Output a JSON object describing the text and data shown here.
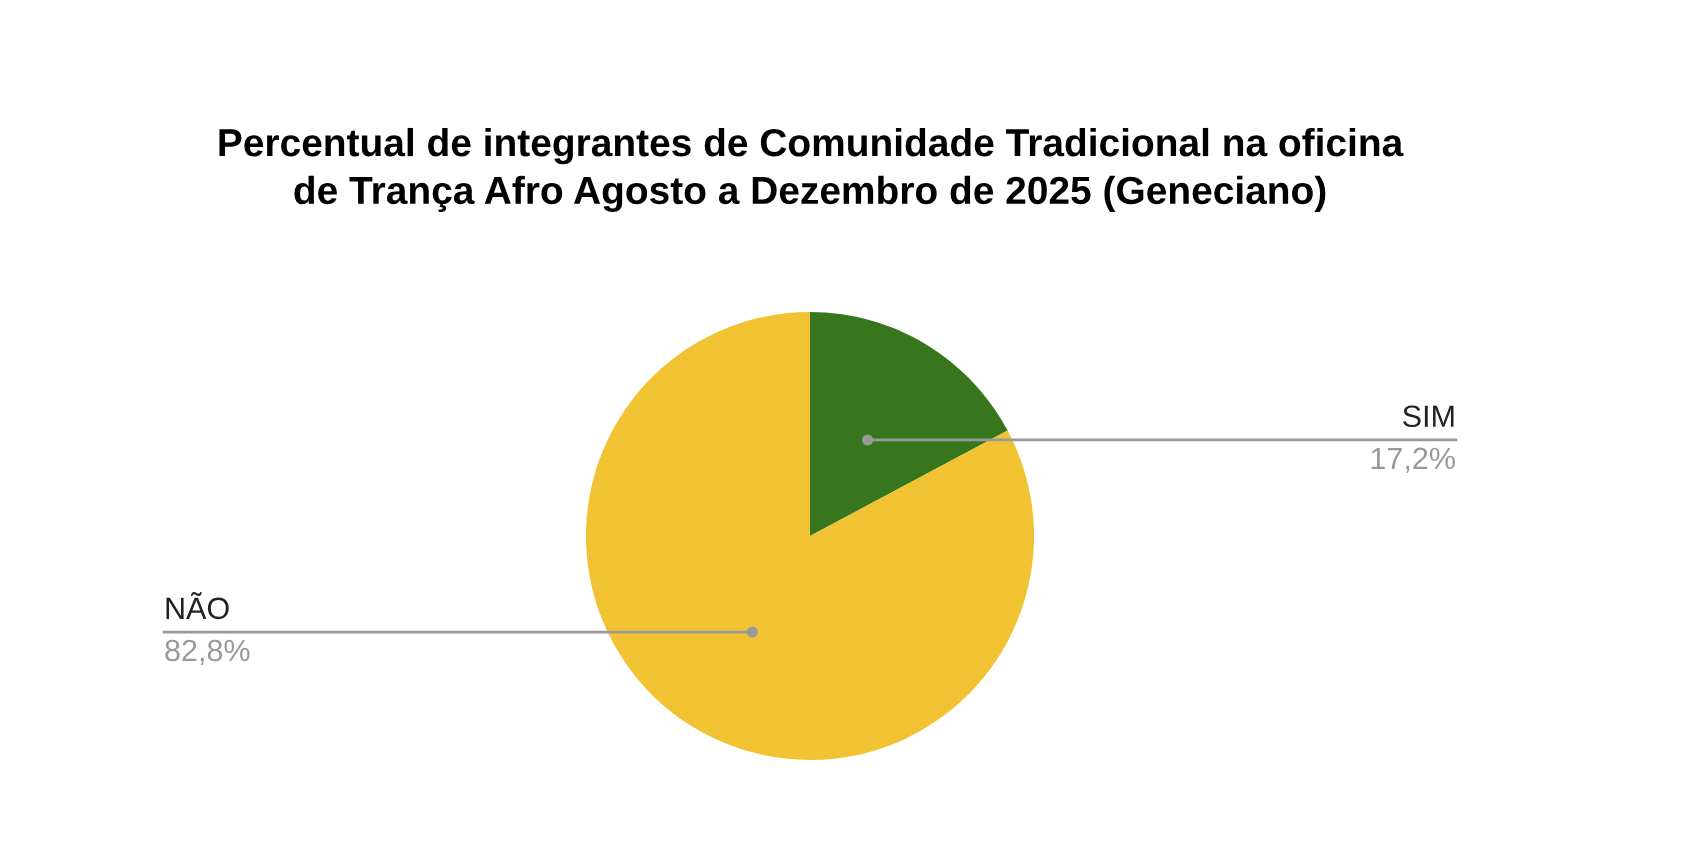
{
  "chart_data": {
    "type": "pie",
    "title": "Percentual de integrantes de Comunidade Tradicional na oficina\nde Trança Afro Agosto a Dezembro de 2025 (Geneciano)",
    "categories": [
      "SIM",
      "NÃO"
    ],
    "values": [
      17.2,
      82.8
    ],
    "colors": [
      "#38761d",
      "#f1c232"
    ],
    "value_labels": [
      "17,2%",
      "82,8%"
    ],
    "legend": false
  }
}
